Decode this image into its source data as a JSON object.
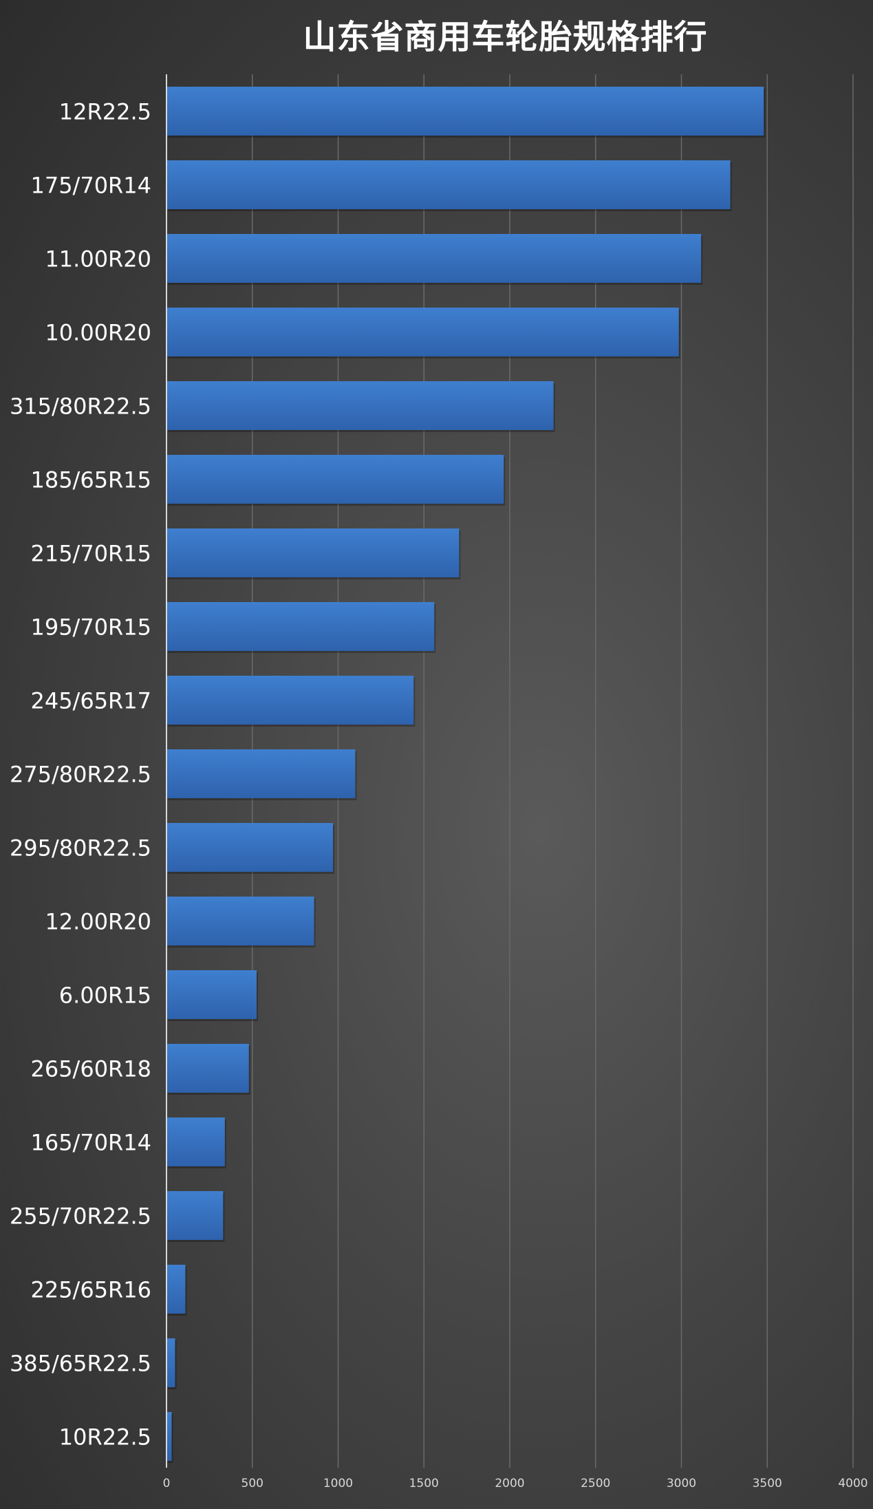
{
  "chart_data": {
    "type": "bar",
    "orientation": "horizontal",
    "title": "山东省商用车轮胎规格排行",
    "xlabel": "",
    "ylabel": "",
    "categories": [
      "12R22.5",
      "175/70R14",
      "11.00R20",
      "10.00R20",
      "315/80R22.5",
      "185/65R15",
      "215/70R15",
      "195/70R15",
      "245/65R17",
      "275/80R22.5",
      "295/80R22.5",
      "12.00R20",
      "6.00R15",
      "265/60R18",
      "165/70R14",
      "255/70R22.5",
      "225/65R16",
      "385/65R22.5",
      "10R22.5"
    ],
    "values": [
      3480,
      3285,
      3115,
      2985,
      2255,
      1965,
      1705,
      1560,
      1440,
      1100,
      970,
      860,
      525,
      480,
      340,
      330,
      110,
      50,
      30
    ],
    "xlim": [
      0,
      4000
    ],
    "xticks": [
      "0",
      "500",
      "1000",
      "1500",
      "2000",
      "2500",
      "3000",
      "3500",
      "4000"
    ],
    "grid": "vertical",
    "legend": "none",
    "colors": {
      "bar_top": "#3f7fcf",
      "bar_bottom": "#2e62ad",
      "gridline": "#6a6a6a",
      "axis": "#d8d8d8",
      "text": "#ffffff"
    }
  }
}
